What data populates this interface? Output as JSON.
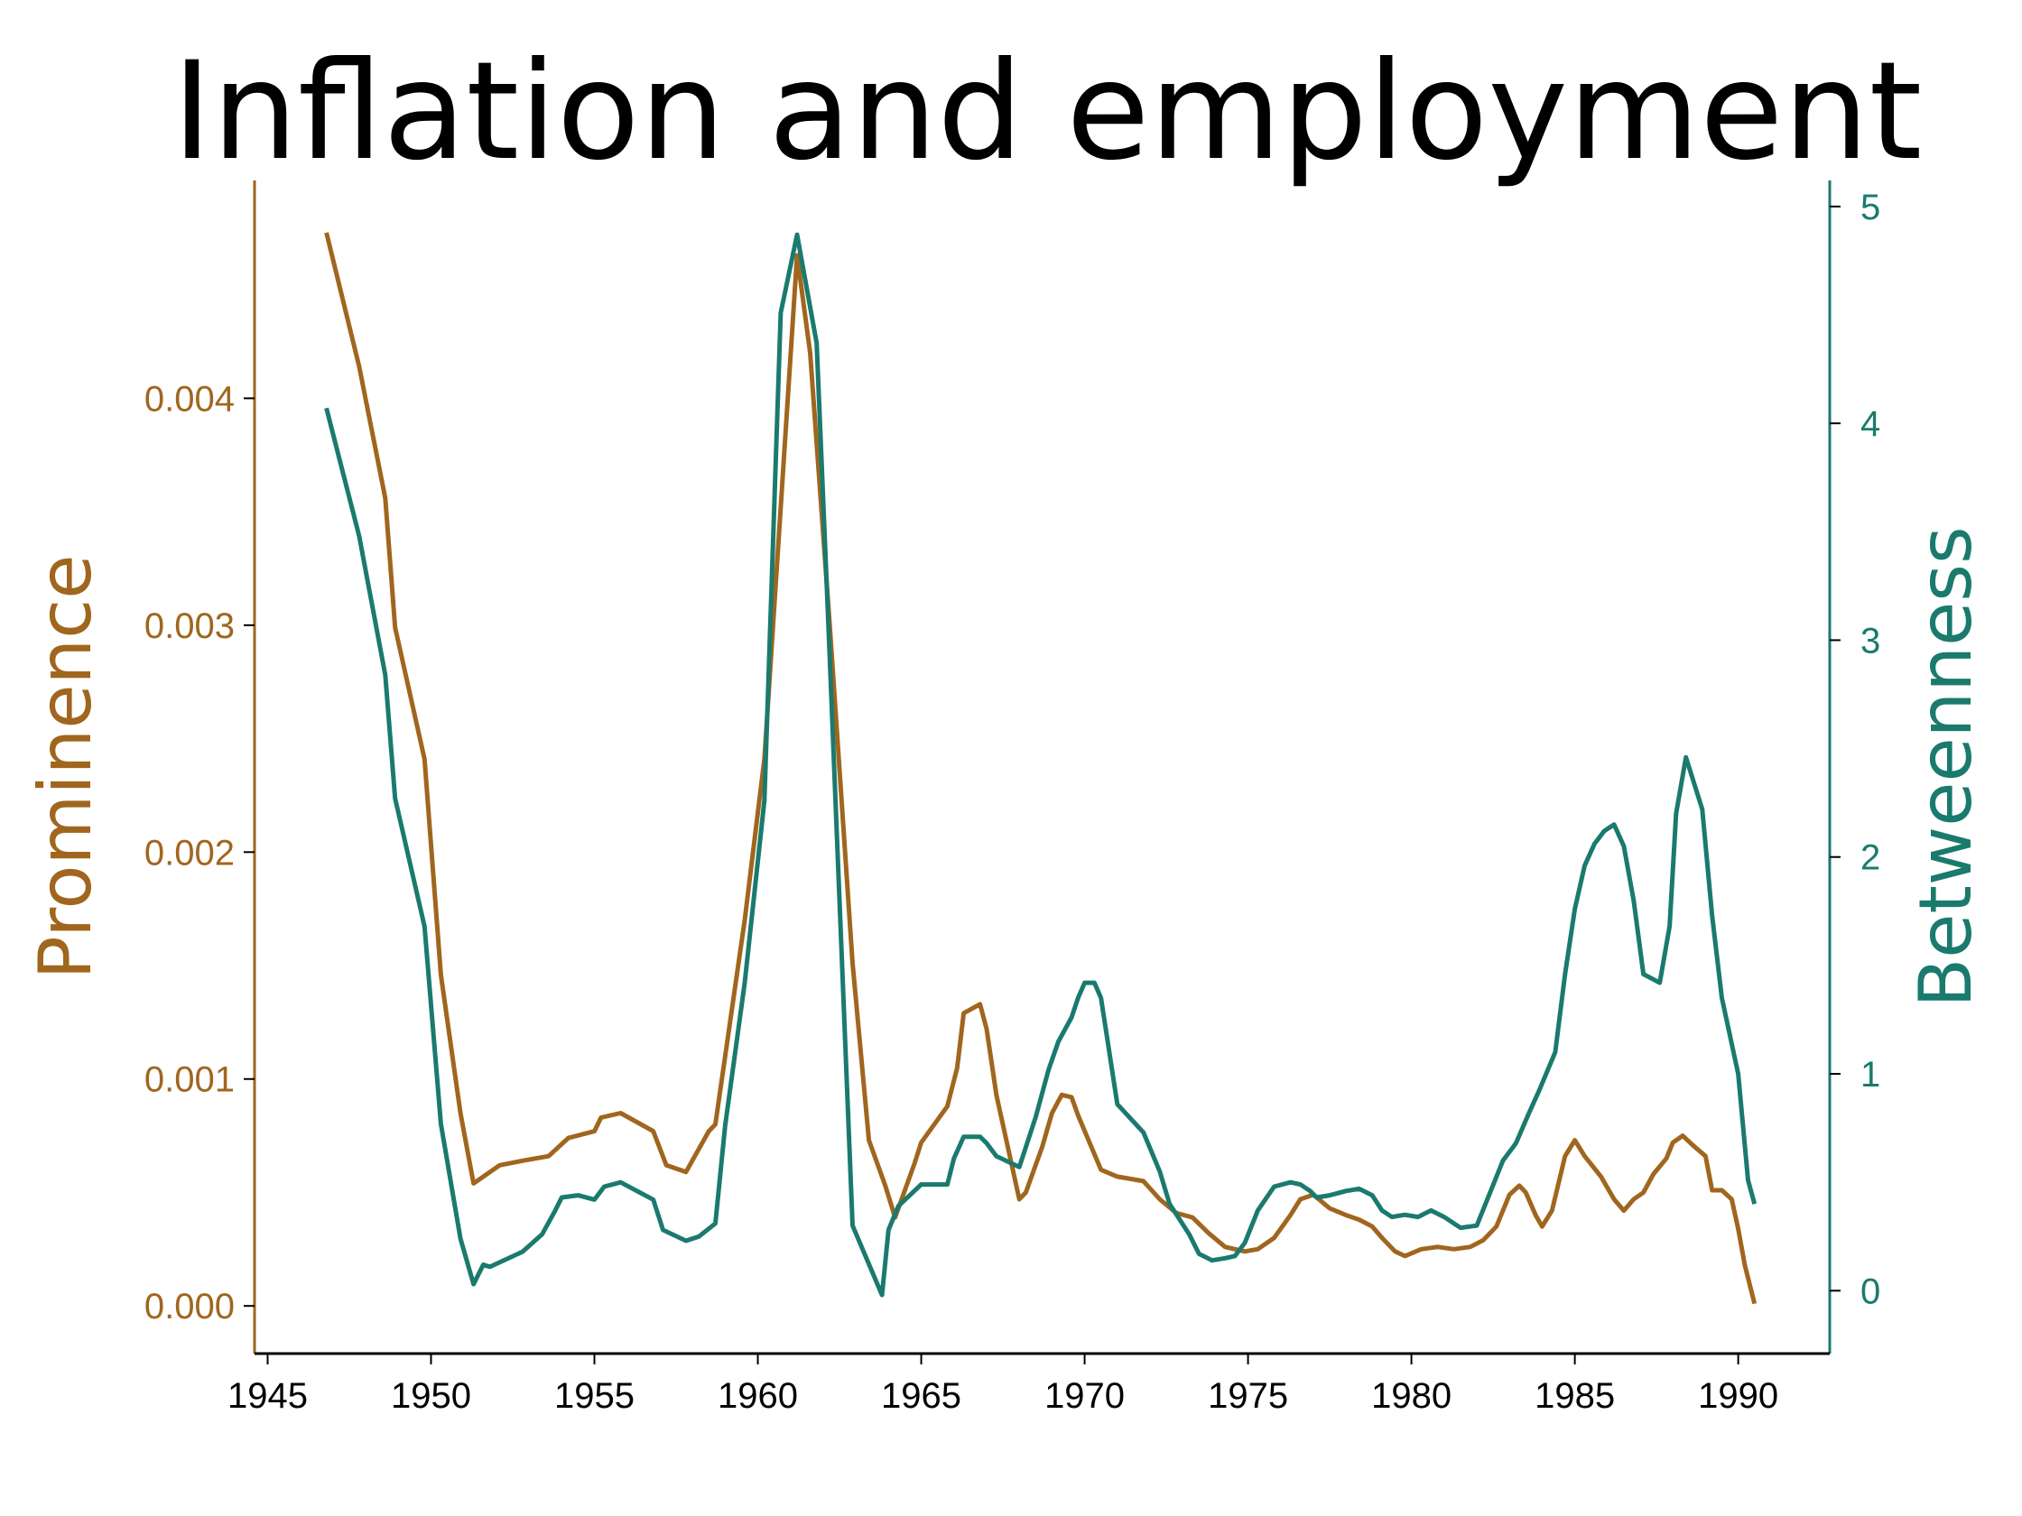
{
  "chart_data": {
    "type": "line",
    "title": "Inflation and employment",
    "xlabel": "",
    "xlim": [
      1944.6,
      1992.8
    ],
    "x_ticks": [
      "1945",
      "1950",
      "1955",
      "1960",
      "1965",
      "1970",
      "1975",
      "1980",
      "1985",
      "1990"
    ],
    "y_left": {
      "label": "Prominence",
      "ylim": [
        -0.00021,
        0.00496
      ],
      "ticks": [
        "0.000",
        "0.001",
        "0.002",
        "0.003",
        "0.004"
      ],
      "color": "#A0661E"
    },
    "y_right": {
      "label": "Betweenness",
      "ylim": [
        -0.29,
        5.12
      ],
      "ticks": [
        "0",
        "1",
        "2",
        "3",
        "4",
        "5"
      ],
      "color": "#1A7A6E"
    },
    "grid": false,
    "series": [
      {
        "name": "Prominence",
        "axis": "left",
        "color": "#A0661E",
        "x": [
          1946.8,
          1947.8,
          1948.6,
          1948.9,
          1949.8,
          1950.3,
          1950.9,
          1951.3,
          1951.6,
          1952.1,
          1952.8,
          1953.6,
          1954.2,
          1955.0,
          1955.2,
          1955.8,
          1956.3,
          1956.8,
          1957.2,
          1957.8,
          1958.5,
          1958.7,
          1959.6,
          1960.2,
          1961.2,
          1961.6,
          1962.2,
          1962.9,
          1963.4,
          1963.9,
          1964.2,
          1964.8,
          1965.0,
          1965.8,
          1966.1,
          1966.3,
          1966.8,
          1967.0,
          1967.3,
          1968.0,
          1968.2,
          1968.7,
          1969.0,
          1969.3,
          1969.6,
          1969.8,
          1970.5,
          1971.0,
          1971.8,
          1972.3,
          1972.8,
          1973.3,
          1973.8,
          1974.3,
          1974.9,
          1975.3,
          1975.8,
          1976.3,
          1976.6,
          1977.0,
          1977.5,
          1978.0,
          1978.4,
          1978.8,
          1979.1,
          1979.5,
          1979.8,
          1980.3,
          1980.8,
          1981.3,
          1981.8,
          1982.2,
          1982.6,
          1983.0,
          1983.3,
          1983.5,
          1983.8,
          1984.0,
          1984.3,
          1984.7,
          1985.0,
          1985.3,
          1985.8,
          1986.2,
          1986.5,
          1986.8,
          1987.1,
          1987.4,
          1987.8,
          1988.0,
          1988.3,
          1988.6,
          1989.0,
          1989.2,
          1989.5,
          1989.8,
          1990.0,
          1990.2,
          1990.5
        ],
        "values": [
          0.00473,
          0.00414,
          0.00356,
          0.00299,
          0.00241,
          0.00146,
          0.00085,
          0.00054,
          0.00057,
          0.00062,
          0.00064,
          0.00066,
          0.00074,
          0.00077,
          0.00083,
          0.00085,
          0.00081,
          0.00077,
          0.00062,
          0.00059,
          0.00077,
          0.0008,
          0.0017,
          0.00241,
          0.00463,
          0.0042,
          0.003,
          0.00151,
          0.00073,
          0.00053,
          0.00039,
          0.00063,
          0.00072,
          0.00088,
          0.00105,
          0.00129,
          0.00133,
          0.00122,
          0.00093,
          0.00047,
          0.0005,
          0.0007,
          0.00085,
          0.00093,
          0.00092,
          0.00084,
          0.0006,
          0.00057,
          0.00055,
          0.00047,
          0.00041,
          0.00039,
          0.00032,
          0.00026,
          0.00024,
          0.00025,
          0.0003,
          0.0004,
          0.00047,
          0.00049,
          0.00043,
          0.0004,
          0.00038,
          0.00035,
          0.0003,
          0.00024,
          0.00022,
          0.00025,
          0.00026,
          0.00025,
          0.00026,
          0.00029,
          0.00035,
          0.00049,
          0.00053,
          0.0005,
          0.0004,
          0.00035,
          0.00042,
          0.00066,
          0.00073,
          0.00066,
          0.00057,
          0.00047,
          0.00042,
          0.00047,
          0.0005,
          0.00058,
          0.00065,
          0.00072,
          0.00075,
          0.00071,
          0.00066,
          0.00051,
          0.00051,
          0.00047,
          0.00034,
          0.00018,
          1e-05
        ]
      },
      {
        "name": "Betweenness",
        "axis": "right",
        "color": "#1A7A6E",
        "x": [
          1946.8,
          1947.8,
          1948.6,
          1948.9,
          1949.8,
          1950.3,
          1950.9,
          1951.3,
          1951.6,
          1951.8,
          1952.8,
          1953.4,
          1953.8,
          1954.0,
          1954.5,
          1955.0,
          1955.3,
          1955.8,
          1956.3,
          1956.8,
          1957.1,
          1957.8,
          1958.2,
          1958.7,
          1959.0,
          1959.6,
          1960.2,
          1960.7,
          1961.2,
          1961.8,
          1962.2,
          1962.9,
          1963.8,
          1964.0,
          1964.3,
          1965.0,
          1965.8,
          1966.0,
          1966.3,
          1966.8,
          1967.0,
          1967.3,
          1968.0,
          1968.5,
          1968.9,
          1969.2,
          1969.6,
          1969.8,
          1970.0,
          1970.3,
          1970.5,
          1971.0,
          1971.8,
          1972.3,
          1972.6,
          1972.9,
          1973.2,
          1973.5,
          1973.9,
          1974.3,
          1974.6,
          1974.9,
          1975.3,
          1975.8,
          1976.3,
          1976.6,
          1976.9,
          1977.1,
          1977.5,
          1978.0,
          1978.4,
          1978.8,
          1979.1,
          1979.4,
          1979.8,
          1980.2,
          1980.6,
          1981.0,
          1981.5,
          1982.0,
          1982.4,
          1982.8,
          1983.2,
          1983.6,
          1983.9,
          1984.4,
          1984.7,
          1985.0,
          1985.3,
          1985.6,
          1985.9,
          1986.2,
          1986.5,
          1986.8,
          1987.1,
          1987.6,
          1987.9,
          1988.1,
          1988.4,
          1988.9,
          1989.2,
          1989.5,
          1990.0,
          1990.3,
          1990.5
        ],
        "values": [
          4.07,
          3.48,
          2.84,
          2.27,
          1.68,
          0.77,
          0.24,
          0.03,
          0.12,
          0.11,
          0.18,
          0.26,
          0.37,
          0.43,
          0.44,
          0.42,
          0.48,
          0.5,
          0.46,
          0.42,
          0.28,
          0.23,
          0.25,
          0.31,
          0.76,
          1.42,
          2.26,
          4.51,
          4.87,
          4.37,
          2.92,
          0.3,
          -0.02,
          0.28,
          0.39,
          0.49,
          0.49,
          0.61,
          0.71,
          0.71,
          0.68,
          0.62,
          0.57,
          0.8,
          1.02,
          1.15,
          1.26,
          1.35,
          1.42,
          1.42,
          1.35,
          0.86,
          0.73,
          0.55,
          0.4,
          0.33,
          0.26,
          0.17,
          0.14,
          0.15,
          0.16,
          0.22,
          0.37,
          0.48,
          0.5,
          0.49,
          0.46,
          0.43,
          0.44,
          0.46,
          0.47,
          0.44,
          0.37,
          0.34,
          0.35,
          0.34,
          0.37,
          0.34,
          0.29,
          0.3,
          0.45,
          0.6,
          0.68,
          0.82,
          0.92,
          1.1,
          1.46,
          1.76,
          1.96,
          2.06,
          2.12,
          2.15,
          2.05,
          1.8,
          1.46,
          1.42,
          1.68,
          2.2,
          2.46,
          2.22,
          1.73,
          1.35,
          1.0,
          0.51,
          0.4
        ]
      }
    ]
  }
}
